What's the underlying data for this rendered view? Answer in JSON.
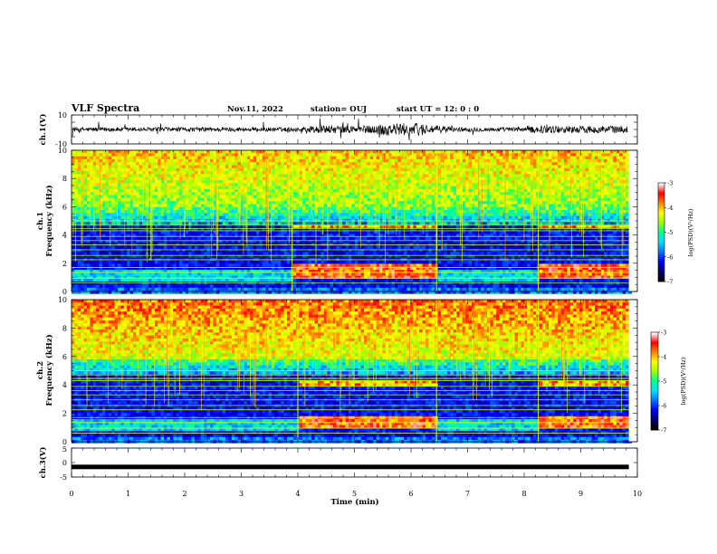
{
  "header": {
    "title": "VLF Spectra",
    "date": "Nov.11, 2022",
    "station": "station= OUJ",
    "start": "start  UT =   12: 0  : 0"
  },
  "chart_data": [
    {
      "type": "line",
      "panel": "ch1-waveform",
      "ylabel": "ch.1(V)",
      "ylim": [
        -10,
        10
      ],
      "yticks": [
        "10",
        "-10"
      ],
      "description_values": {
        "baseline": 0,
        "typical_amplitude": 1.5,
        "max_amplitude": 8
      }
    },
    {
      "type": "heatmap",
      "panel": "ch1-spectrogram",
      "ylabel": "ch.1\nFrequency (kHz)",
      "ylim": [
        0,
        10
      ],
      "yticks": [
        "0",
        "2",
        "4",
        "6",
        "8",
        "10"
      ],
      "xlim": [
        0,
        9.85
      ],
      "segments_min": [
        0,
        3.9,
        6.45,
        8.25,
        9.85
      ],
      "band_khz": [
        1.5,
        4.7
      ],
      "colorbar": {
        "label": "log(PSD)(V²/Hz)",
        "ticks": [
          "-3",
          "-4",
          "-5",
          "-6",
          "-7"
        ],
        "range": [
          -7,
          -3
        ]
      }
    },
    {
      "type": "heatmap",
      "panel": "ch2-spectrogram",
      "ylabel": "ch.2\nFrequency (kHz)",
      "ylim": [
        0,
        10
      ],
      "yticks": [
        "0",
        "2",
        "4",
        "6",
        "8",
        "10"
      ],
      "xlim": [
        0,
        9.85
      ],
      "segments_min": [
        0,
        4.0,
        6.45,
        8.25,
        9.85
      ],
      "band_khz": [
        1.5,
        4.3
      ],
      "colorbar": {
        "label": "log(PSD)(V²/Hz)",
        "ticks": [
          "-3",
          "-4",
          "-5",
          "-6",
          "-7"
        ],
        "range": [
          -7,
          -3
        ]
      }
    },
    {
      "type": "line",
      "panel": "ch3-waveform",
      "ylabel": "ch.3(V)",
      "ylim": [
        -5,
        5
      ],
      "yticks": [
        "5",
        "0",
        "-5"
      ],
      "level_v": -1.5
    }
  ],
  "xaxis": {
    "label": "Time (min)",
    "ticks": [
      "0",
      "1",
      "2",
      "3",
      "4",
      "5",
      "6",
      "7",
      "8",
      "9",
      "10"
    ],
    "xlim": [
      0,
      10
    ]
  },
  "colors": {
    "scale": [
      "#000000",
      "#00007a",
      "#0000ff",
      "#0078ff",
      "#00e0ff",
      "#00ff90",
      "#a0ff00",
      "#ffff00",
      "#ff8000",
      "#ff0000",
      "#ffffff"
    ]
  }
}
